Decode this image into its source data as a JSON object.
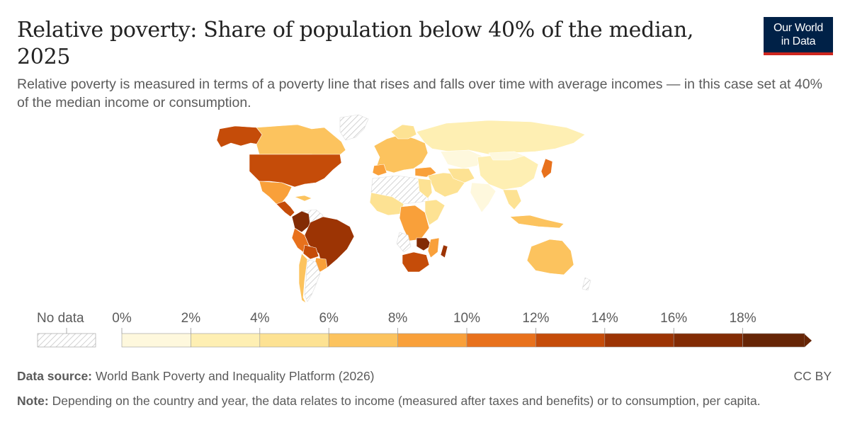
{
  "header": {
    "title": "Relative poverty: Share of population below 40% of the median, 2025",
    "subtitle": "Relative poverty is measured in terms of a poverty line that rises and falls over time with average incomes — in this case set at 40% of the median income or consumption."
  },
  "logo": {
    "line1": "Our World",
    "line2": "in Data",
    "bg": "#002147",
    "accent": "#ce261e"
  },
  "legend": {
    "no_data_label": "No data",
    "ticks": [
      "0%",
      "2%",
      "4%",
      "6%",
      "8%",
      "10%",
      "12%",
      "14%",
      "16%",
      "18%"
    ],
    "bin_colors": [
      "#fef8dd",
      "#feefb3",
      "#fde293",
      "#fcc35e",
      "#f9a03a",
      "#e8711c",
      "#c54c09",
      "#9c3404",
      "#822b04",
      "#662506"
    ]
  },
  "chart_data": {
    "type": "choropleth",
    "title": "Relative poverty: Share of population below 40% of the median, 2025",
    "unit": "%",
    "bins": [
      0,
      2,
      4,
      6,
      8,
      10,
      12,
      14,
      16,
      18
    ],
    "regions": [
      {
        "name": "Canada",
        "bin": 4
      },
      {
        "name": "United States",
        "bin": 12
      },
      {
        "name": "Mexico",
        "bin": 8
      },
      {
        "name": "Central America",
        "bin": 12
      },
      {
        "name": "Colombia",
        "bin": 16
      },
      {
        "name": "Venezuela",
        "bin": "no-data"
      },
      {
        "name": "Brazil",
        "bin": 16
      },
      {
        "name": "Peru",
        "bin": 12
      },
      {
        "name": "Bolivia",
        "bin": 10
      },
      {
        "name": "Argentina",
        "bin": "no-data"
      },
      {
        "name": "Chile",
        "bin": 6
      },
      {
        "name": "Russia",
        "bin": 2
      },
      {
        "name": "Europe",
        "bin": 6
      },
      {
        "name": "China",
        "bin": 2
      },
      {
        "name": "Kazakhstan",
        "bin": 0
      },
      {
        "name": "India",
        "bin": 0
      },
      {
        "name": "Australia",
        "bin": 6
      },
      {
        "name": "South Africa",
        "bin": 12
      },
      {
        "name": "Zambia",
        "bin": 16
      },
      {
        "name": "Japan",
        "bin": 10
      },
      {
        "name": "Greenland",
        "bin": "no-data"
      }
    ]
  },
  "footer": {
    "source_label": "Data source:",
    "source_text": "World Bank Poverty and Inequality Platform (2026)",
    "license": "CC BY",
    "note_label": "Note:",
    "note_text": "Depending on the country and year, the data relates to income (measured after taxes and benefits) or to consumption, per capita."
  }
}
